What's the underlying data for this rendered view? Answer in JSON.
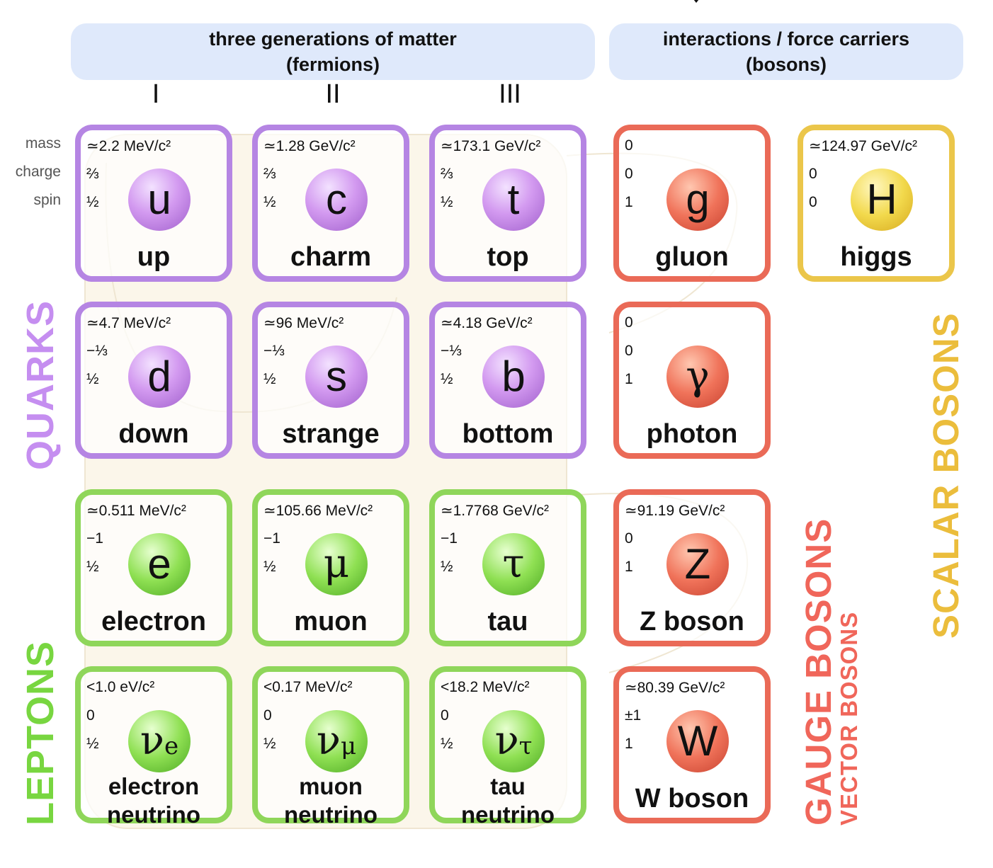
{
  "header": {
    "fermions_line1": "three generations of matter",
    "fermions_line2": "(fermions)",
    "bosons_line1": "interactions / force carriers",
    "bosons_line2": "(bosons)"
  },
  "generations": [
    "I",
    "II",
    "III"
  ],
  "property_labels": {
    "mass": "mass",
    "charge": "charge",
    "spin": "spin"
  },
  "group_labels": {
    "quarks": "QUARKS",
    "leptons": "LEPTONS",
    "gauge_bosons": "GAUGE BOSONS",
    "vector_bosons": "VECTOR BOSONS",
    "scalar_bosons": "SCALAR BOSONS"
  },
  "colors": {
    "quark": "#b585e3",
    "lepton": "#8fd65a",
    "gauge": "#ea6a57",
    "scalar": "#ebc64a",
    "header_bg": "#dfe9fb"
  },
  "particles": {
    "up": {
      "mass": "≃2.2 MeV/c²",
      "charge": "⅔",
      "spin": "½",
      "symbol": "u",
      "name": "up"
    },
    "charm": {
      "mass": "≃1.28 GeV/c²",
      "charge": "⅔",
      "spin": "½",
      "symbol": "c",
      "name": "charm"
    },
    "top": {
      "mass": "≃173.1 GeV/c²",
      "charge": "⅔",
      "spin": "½",
      "symbol": "t",
      "name": "top"
    },
    "gluon": {
      "mass": "0",
      "charge": "0",
      "spin": "1",
      "symbol": "g",
      "name": "gluon"
    },
    "higgs": {
      "mass": "≃124.97 GeV/c²",
      "charge": "0",
      "spin": "0",
      "symbol": "H",
      "name": "higgs"
    },
    "down": {
      "mass": "≃4.7 MeV/c²",
      "charge": "−⅓",
      "spin": "½",
      "symbol": "d",
      "name": "down"
    },
    "strange": {
      "mass": "≃96 MeV/c²",
      "charge": "−⅓",
      "spin": "½",
      "symbol": "s",
      "name": "strange"
    },
    "bottom": {
      "mass": "≃4.18 GeV/c²",
      "charge": "−⅓",
      "spin": "½",
      "symbol": "b",
      "name": "bottom"
    },
    "photon": {
      "mass": "0",
      "charge": "0",
      "spin": "1",
      "symbol": "γ",
      "name": "photon"
    },
    "electron": {
      "mass": "≃0.511 MeV/c²",
      "charge": "−1",
      "spin": "½",
      "symbol": "e",
      "name": "electron"
    },
    "muon": {
      "mass": "≃105.66 MeV/c²",
      "charge": "−1",
      "spin": "½",
      "symbol": "μ",
      "name": "muon"
    },
    "tau": {
      "mass": "≃1.7768 GeV/c²",
      "charge": "−1",
      "spin": "½",
      "symbol": "τ",
      "name": "tau"
    },
    "z_boson": {
      "mass": "≃91.19 GeV/c²",
      "charge": "0",
      "spin": "1",
      "symbol": "Z",
      "name": "Z boson"
    },
    "electron_neutrino": {
      "mass": "<1.0 eV/c²",
      "charge": "0",
      "spin": "½",
      "symbol": "ν",
      "symbol_sub": "e",
      "name_line1": "electron",
      "name_line2": "neutrino"
    },
    "muon_neutrino": {
      "mass": "<0.17 MeV/c²",
      "charge": "0",
      "spin": "½",
      "symbol": "ν",
      "symbol_sub": "μ",
      "name_line1": "muon",
      "name_line2": "neutrino"
    },
    "tau_neutrino": {
      "mass": "<18.2 MeV/c²",
      "charge": "0",
      "spin": "½",
      "symbol": "ν",
      "symbol_sub": "τ",
      "name_line1": "tau",
      "name_line2": "neutrino"
    },
    "w_boson": {
      "mass": "≃80.39 GeV/c²",
      "charge": "±1",
      "spin": "1",
      "symbol": "W",
      "name": "W boson"
    }
  }
}
